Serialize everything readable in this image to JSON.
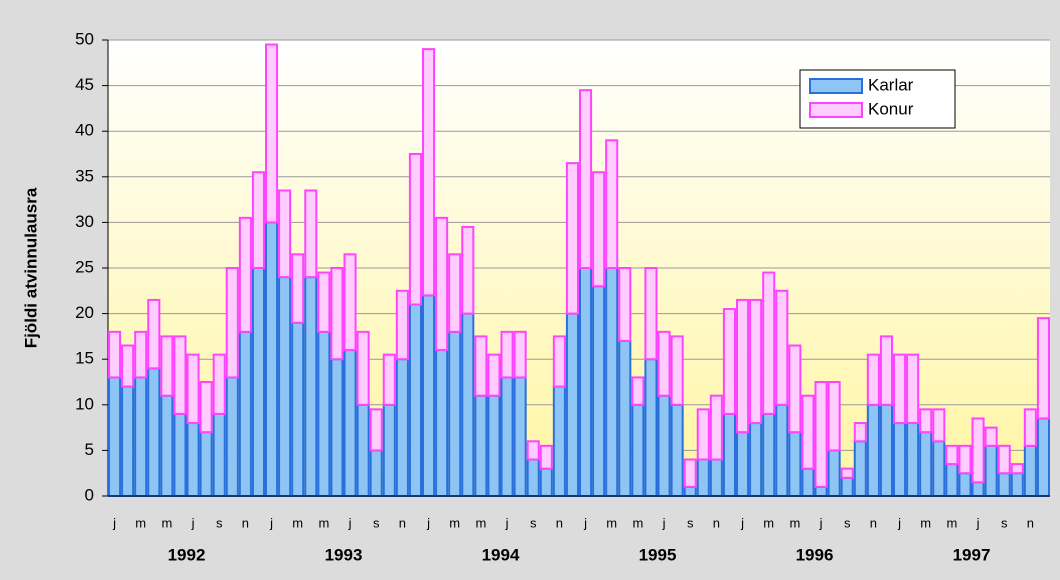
{
  "chart_data": {
    "type": "stacked-bar",
    "y_label": "Fjöldi atvinnulausra",
    "categories": [
      "j",
      null,
      "m",
      null,
      "m",
      null,
      "j",
      null,
      "s",
      null,
      "n",
      null,
      "j",
      null,
      "m",
      null,
      "m",
      null,
      "j",
      null,
      "s",
      null,
      "n",
      null,
      "j",
      null,
      "m",
      null,
      "m",
      null,
      "j",
      null,
      "s",
      null,
      "n",
      null,
      "j",
      null,
      "m",
      null,
      "m",
      null,
      "j",
      null,
      "s",
      null,
      "n",
      null,
      "j",
      null,
      "m",
      null,
      "m",
      null,
      "j",
      null,
      "s",
      null,
      "n",
      null,
      "j",
      null,
      "m",
      null,
      "m",
      null,
      "j",
      null,
      "s",
      null,
      "n",
      null
    ],
    "years": [
      "1992",
      "1993",
      "1994",
      "1995",
      "1996",
      "1997"
    ],
    "series": [
      {
        "name": "Karlar",
        "color": "#8ec5f5",
        "stroke": "#2a6fdb",
        "values": [
          13,
          12,
          13,
          14,
          11,
          9,
          8,
          7,
          9,
          13,
          18,
          25,
          30,
          24,
          19,
          24,
          18,
          15,
          16,
          10,
          5,
          10,
          15,
          21,
          22,
          16,
          18,
          20,
          11,
          11,
          13,
          13,
          4,
          3,
          12,
          20,
          25,
          23,
          25,
          17,
          10,
          15,
          11,
          10,
          1,
          4,
          4,
          9,
          7,
          8,
          9,
          10,
          7,
          3,
          1,
          5,
          2,
          6,
          10,
          10,
          8,
          8,
          7,
          6,
          3.5,
          2.5,
          1.5,
          5.5,
          2.5,
          2.5,
          5.5,
          8.5
        ]
      },
      {
        "name": "Konur",
        "color": "#ffccff",
        "stroke": "#ff44ff",
        "values": [
          5,
          4.5,
          5,
          7.5,
          6.5,
          8.5,
          7.5,
          5.5,
          6.5,
          12,
          12.5,
          10.5,
          19.5,
          9.5,
          7.5,
          9.5,
          6.5,
          10,
          10.5,
          8,
          4.5,
          5.5,
          7.5,
          16.5,
          27,
          14.5,
          8.5,
          9.5,
          6.5,
          4.5,
          5,
          5,
          2,
          2.5,
          5.5,
          16.5,
          19.5,
          12.5,
          14,
          8,
          3,
          10,
          7,
          7.5,
          3,
          5.5,
          7,
          11.5,
          14.5,
          13.5,
          15.5,
          12.5,
          9.5,
          8,
          11.5,
          7.5,
          1,
          2,
          5.5,
          7.5,
          7.5,
          7.5,
          2.5,
          3.5,
          2,
          3,
          7,
          2,
          3,
          1,
          4,
          11
        ]
      }
    ],
    "ylim": [
      0,
      50
    ],
    "yticks": [
      0,
      5,
      10,
      15,
      20,
      25,
      30,
      35,
      40,
      45,
      50
    ],
    "grid": true,
    "legend": "top-right"
  }
}
